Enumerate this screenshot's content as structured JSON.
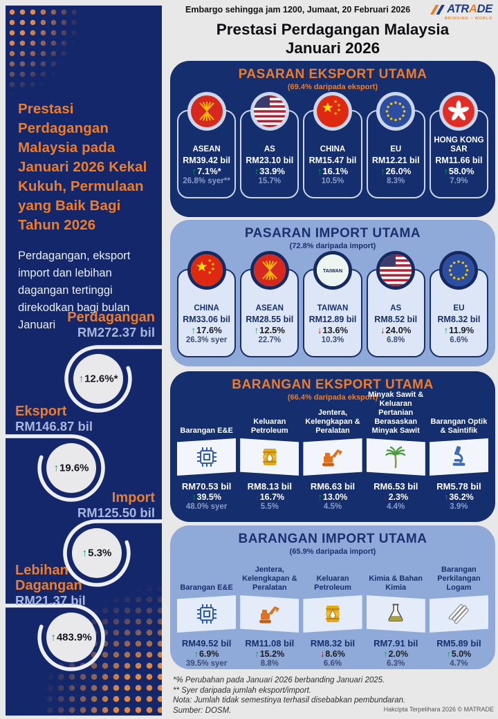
{
  "page": {
    "embargo": "Embargo sehingga jam 1200, Jumaat, 20 Februari 2026",
    "title_line1": "Prestasi Perdagangan Malaysia",
    "title_line2": "Januari 2026"
  },
  "logo": {
    "name": "MATRADE",
    "display": {
      "part1": "ATR",
      "accent": "A",
      "part2": "DE"
    },
    "tagline": "BRIDGING ~ WORLD"
  },
  "sidebar": {
    "headline": "Prestasi Perdagangan Malaysia pada Januari 2026 Kekal Kukuh, Permulaan yang Baik Bagi Tahun 2026",
    "description": "Perdagangan, eksport import dan lebihan dagangan tertinggi direkodkan bagi bulan Januari",
    "stats": [
      {
        "label": "Perdagangan",
        "value": "RM272.37 bil",
        "change": "12.6%*",
        "direction": "up"
      },
      {
        "label": "Eksport",
        "value": "RM146.87 bil",
        "change": "19.6%",
        "direction": "up"
      },
      {
        "label": "Import",
        "value": "RM125.50 bil",
        "change": "5.3%",
        "direction": "up"
      },
      {
        "label": "Lebihan Dagangan",
        "value": "RM21.37 bil",
        "change": "483.9%",
        "direction": "up"
      }
    ]
  },
  "panels": [
    {
      "kind": "market",
      "theme": "dark",
      "title": "PASARAN EKSPORT UTAMA",
      "subtitle": "(69.4% daripada eksport)",
      "items": [
        {
          "name": "ASEAN",
          "icon": "asean-flag-icon",
          "value": "RM39.42 bil",
          "change": "7.1%*",
          "direction": "up",
          "share": "26.8% syer**"
        },
        {
          "name": "AS",
          "icon": "us-flag-icon",
          "value": "RM23.10 bil",
          "change": "33.9%",
          "direction": "up",
          "share": "15.7%"
        },
        {
          "name": "CHINA",
          "icon": "china-flag-icon",
          "value": "RM15.47 bil",
          "change": "16.1%",
          "direction": "up",
          "share": "10.5%"
        },
        {
          "name": "EU",
          "icon": "eu-flag-icon",
          "value": "RM12.21 bil",
          "change": "26.0%",
          "direction": "up",
          "share": "8.3%"
        },
        {
          "name": "HONG KONG SAR",
          "icon": "hong-kong-flag-icon",
          "value": "RM11.66 bil",
          "change": "58.0%",
          "direction": "up",
          "share": "7.9%"
        }
      ]
    },
    {
      "kind": "market",
      "theme": "light",
      "title": "PASARAN IMPORT UTAMA",
      "subtitle": "(72.8% daripada import)",
      "items": [
        {
          "name": "CHINA",
          "icon": "china-flag-icon",
          "value": "RM33.06 bil",
          "change": "17.6%",
          "direction": "up",
          "share": "26.3% syer"
        },
        {
          "name": "ASEAN",
          "icon": "asean-flag-icon",
          "value": "RM28.55 bil",
          "change": "12.5%",
          "direction": "up",
          "share": "22.7%"
        },
        {
          "name": "TAIWAN",
          "icon": "taiwan-flag-icon",
          "value": "RM12.89 bil",
          "change": "13.6%",
          "direction": "down",
          "share": "10.3%"
        },
        {
          "name": "AS",
          "icon": "us-flag-icon",
          "value": "RM8.52 bil",
          "change": "24.0%",
          "direction": "down",
          "share": "6.8%"
        },
        {
          "name": "EU",
          "icon": "eu-flag-icon",
          "value": "RM8.32 bil",
          "change": "11.9%",
          "direction": "up",
          "share": "6.6%"
        }
      ]
    },
    {
      "kind": "product",
      "theme": "dark",
      "title": "BARANGAN EKSPORT UTAMA",
      "subtitle": "(66.4% daripada eksport)",
      "items": [
        {
          "name": "Barangan E&E",
          "icon": "microchip-icon",
          "value": "RM70.53 bil",
          "change": "39.5%",
          "direction": "up",
          "share": "48.0% syer"
        },
        {
          "name": "Keluaran Petroleum",
          "icon": "oil-barrel-icon",
          "value": "RM8.13 bil",
          "change": "16.7%",
          "direction": "down",
          "share": "5.5%"
        },
        {
          "name": "Jentera, Kelengkapan & Peralatan",
          "icon": "excavator-icon",
          "value": "RM6.63 bil",
          "change": "13.0%",
          "direction": "up",
          "share": "4.5%"
        },
        {
          "name": "Minyak Sawit & Keluaran Pertanian Berasaskan Minyak Sawit",
          "icon": "palm-tree-icon",
          "value": "RM6.53 bil",
          "change": "2.3%",
          "direction": "down",
          "share": "4.4%"
        },
        {
          "name": "Barangan Optik & Saintifik",
          "icon": "microscope-icon",
          "value": "RM5.78 bil",
          "change": "36.2%",
          "direction": "up",
          "share": "3.9%"
        }
      ]
    },
    {
      "kind": "product",
      "theme": "light",
      "title": "BARANGAN IMPORT UTAMA",
      "subtitle": "(65.9% daripada import)",
      "items": [
        {
          "name": "Barangan E&E",
          "icon": "microchip-icon",
          "value": "RM49.52 bil",
          "change": "6.9%",
          "direction": "up",
          "share": "39.5% syer"
        },
        {
          "name": "Jentera, Kelengkapan & Peralatan",
          "icon": "excavator-icon",
          "value": "RM11.08 bil",
          "change": "15.2%",
          "direction": "up",
          "share": "8.8%"
        },
        {
          "name": "Keluaran Petroleum",
          "icon": "oil-barrel-icon",
          "value": "RM8.32 bil",
          "change": "8.6%",
          "direction": "down",
          "share": "6.6%"
        },
        {
          "name": "Kimia & Bahan Kimia",
          "icon": "flask-icon",
          "value": "RM7.91 bil",
          "change": "2.0%",
          "direction": "up",
          "share": "6.3%"
        },
        {
          "name": "Barangan Perkilangan Logam",
          "icon": "metal-bars-icon",
          "value": "RM5.89 bil",
          "change": "5.0%",
          "direction": "up",
          "share": "4.7%"
        }
      ]
    }
  ],
  "footer": {
    "note1": "*% Perubahan pada Januari 2026 berbanding Januari 2025.",
    "note2": "** Syer daripada jumlah eksport/import.",
    "note3": "Nota: Jumlah tidak semestinya terhasil disebabkan pembundaran.",
    "note4": "Sumber: DOSM.",
    "copyright": "Hakcipta Terpelihara 2026 © MATRADE"
  },
  "colors": {
    "navy_panel": "#152e6e",
    "navy_sidebar": "#13276a",
    "light_blue_panel": "#8fa9d8",
    "orange_accent": "#ef7d26",
    "up_green": "#00a357",
    "down_red": "#c40000",
    "light_card": "#dce6f6",
    "page_background": "#e8e8e8"
  }
}
